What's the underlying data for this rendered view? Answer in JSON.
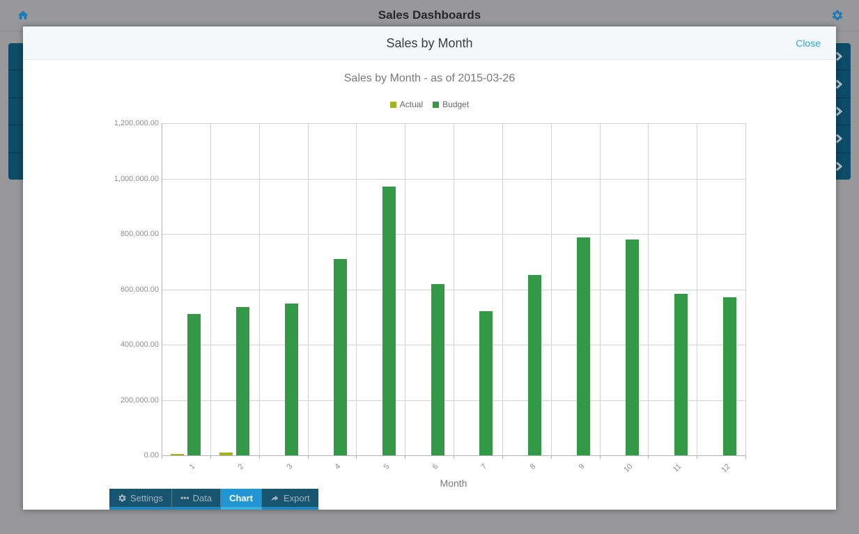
{
  "header": {
    "title": "Sales Dashboards"
  },
  "background_list": {
    "count": 5,
    "chevron_icon": "chevron-right-icon"
  },
  "modal": {
    "title": "Sales by Month",
    "close_label": "Close"
  },
  "chart_data": {
    "type": "bar",
    "title": "Sales by Month - as of 2015-03-26",
    "xlabel": "Month",
    "ylabel": "",
    "categories": [
      "1",
      "2",
      "3",
      "4",
      "5",
      "6",
      "7",
      "8",
      "9",
      "10",
      "11",
      "12"
    ],
    "series": [
      {
        "name": "Actual",
        "color": "#a4b41e",
        "values": [
          6000,
          11000,
          0,
          0,
          0,
          0,
          0,
          0,
          0,
          0,
          0,
          0
        ]
      },
      {
        "name": "Budget",
        "color": "#339946",
        "values": [
          510000,
          535000,
          548000,
          709000,
          972000,
          619000,
          521000,
          651000,
          787000,
          779000,
          584000,
          571000
        ]
      }
    ],
    "ylim": [
      0,
      1200000
    ],
    "ytick_step": 200000,
    "ytick_labels": [
      "1,200,000.00",
      "1,000,000.00",
      "800,000.00",
      "600,000.00",
      "400,000.00",
      "200,000.00",
      "0.00"
    ],
    "xtick_rotation": -45,
    "grid": true,
    "legend_position": "top"
  },
  "tabs": [
    {
      "label": "Settings",
      "icon": "gear-icon",
      "active": false
    },
    {
      "label": "Data",
      "icon": "ellipsis-icon",
      "active": false
    },
    {
      "label": "Chart",
      "icon": null,
      "active": true
    },
    {
      "label": "Export",
      "icon": "export-icon",
      "active": false
    }
  ],
  "colors": {
    "accent_blue": "#2196d3",
    "teal_row": "#0d4b66",
    "backdrop": "#98989a",
    "actual": "#a4b41e",
    "budget": "#339946"
  }
}
